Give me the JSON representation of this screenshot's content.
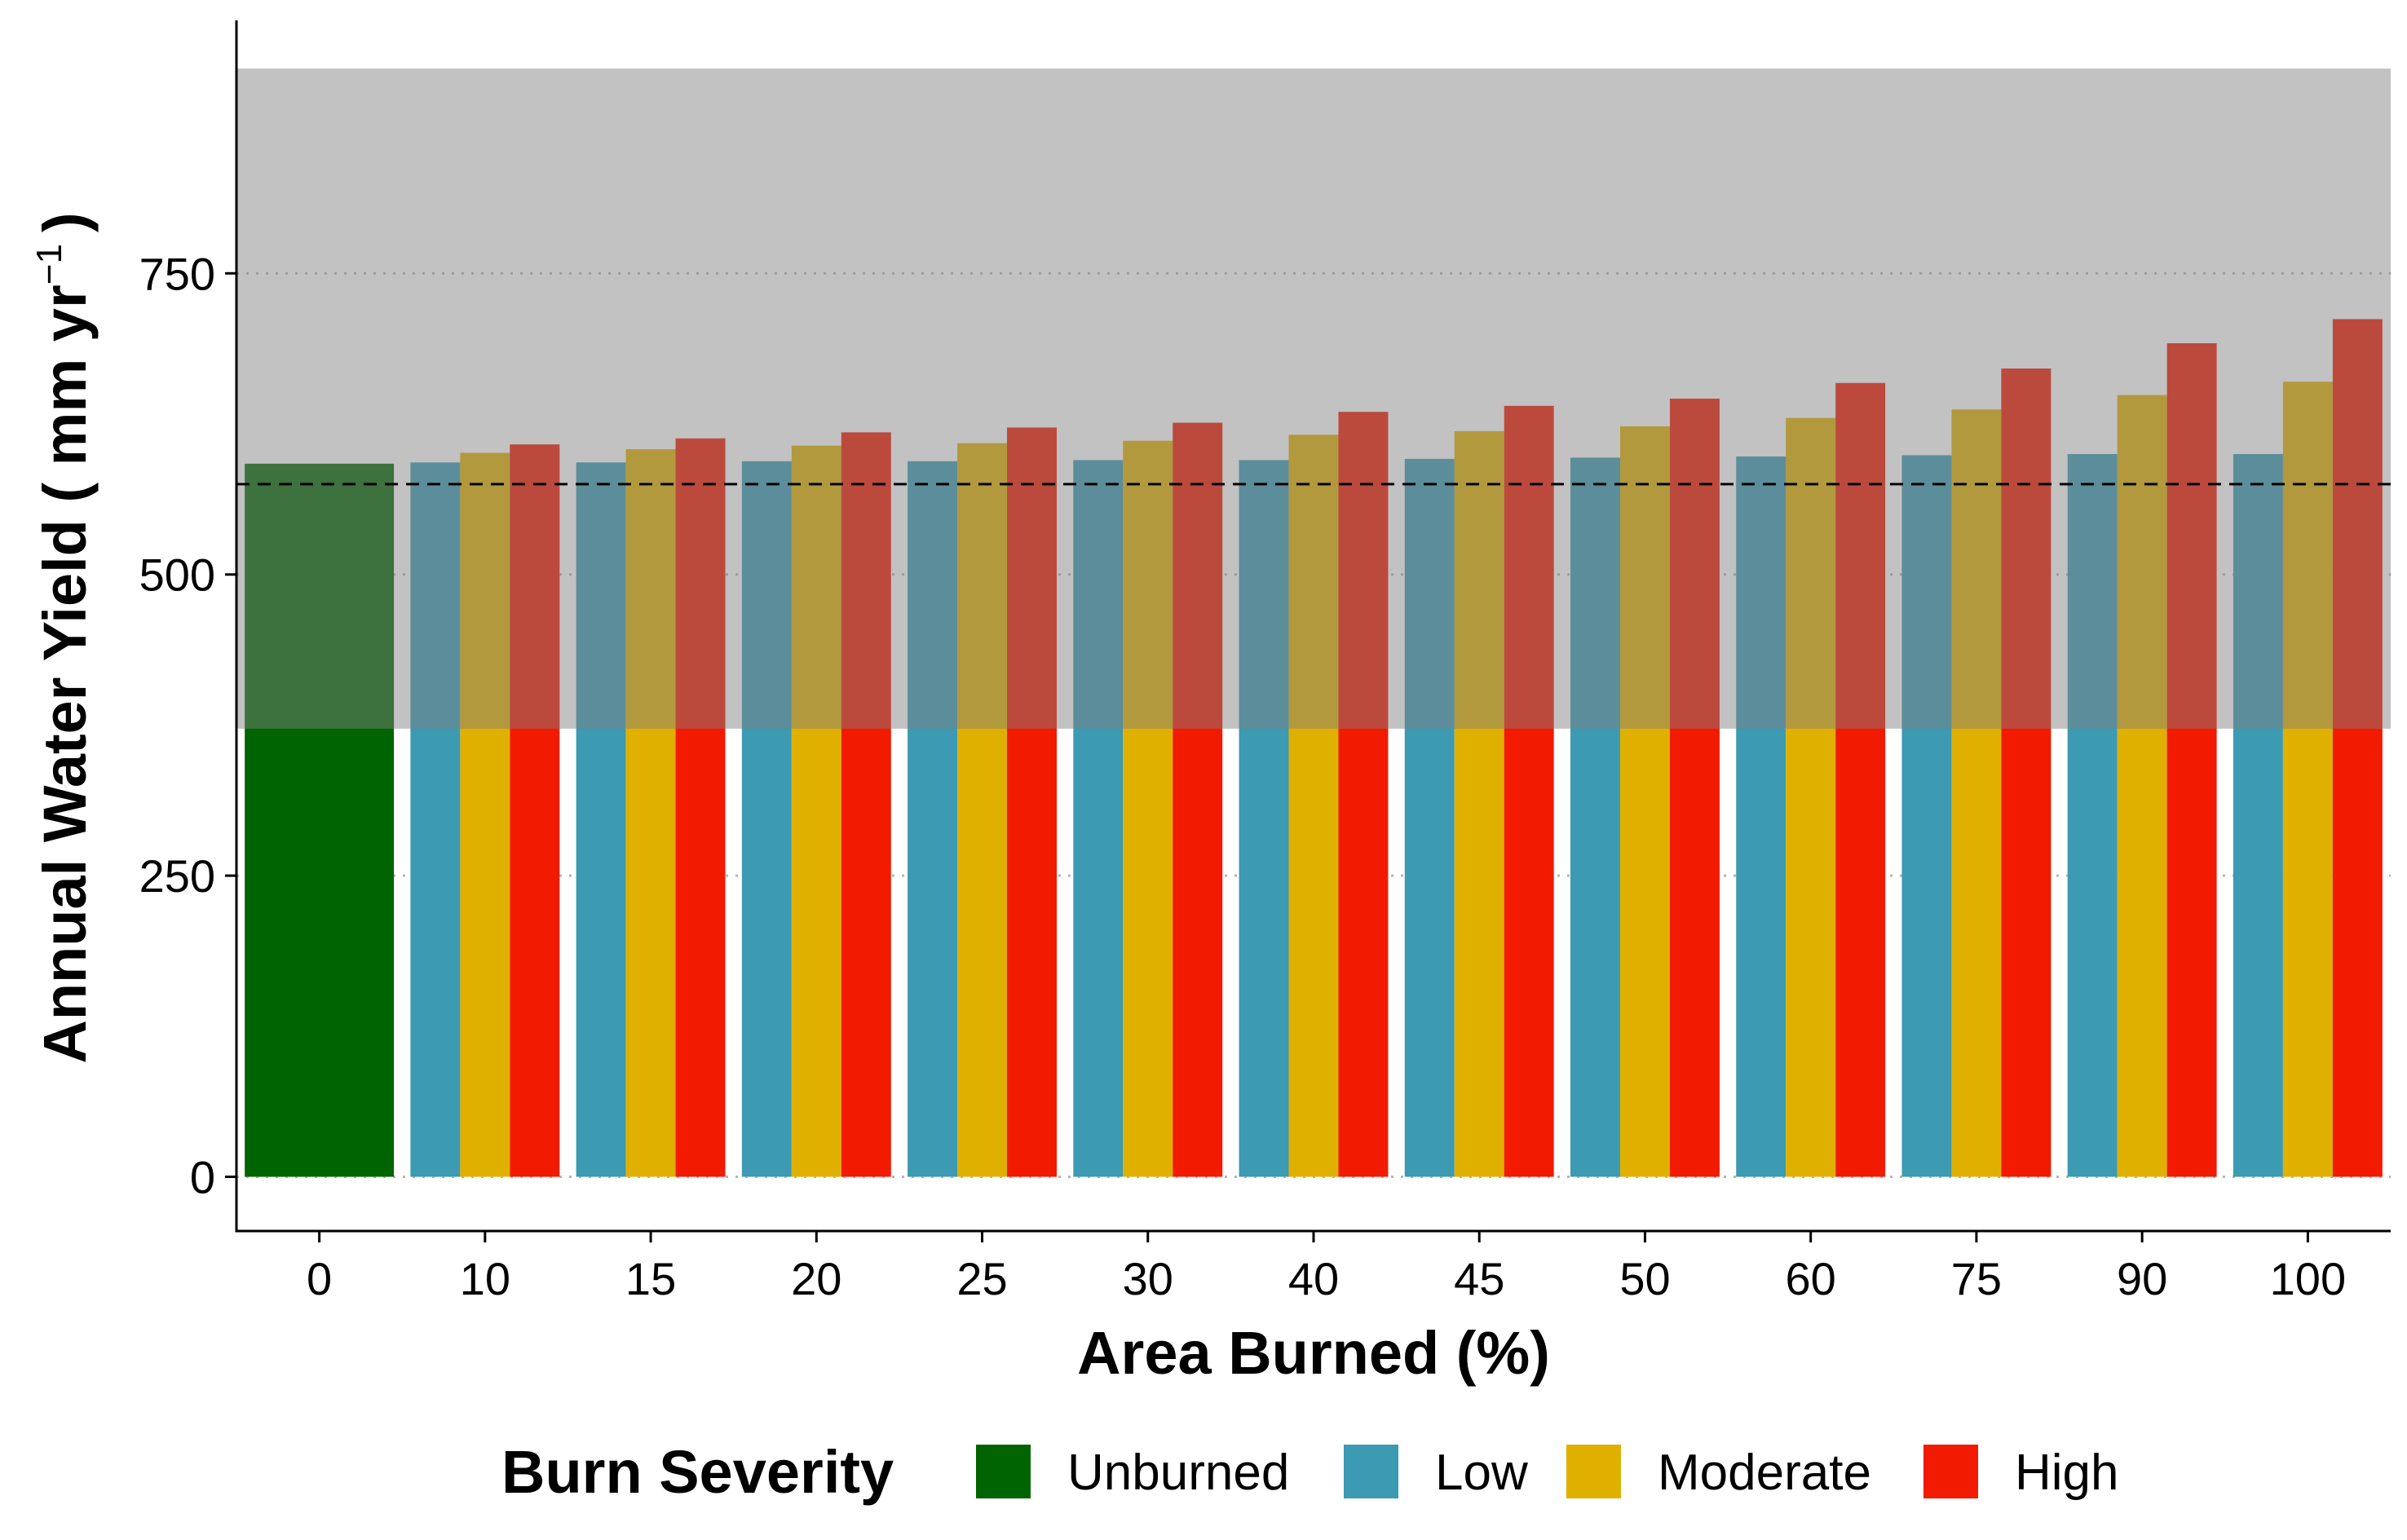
{
  "chart_data": {
    "type": "bar",
    "xlabel": "Area Burned (%)",
    "ylabel": "Annual Water Yield ( mm yr",
    "ylabel_sup": "−1",
    "ylabel_close": ")",
    "categories": [
      "0",
      "10",
      "15",
      "20",
      "25",
      "30",
      "40",
      "45",
      "50",
      "60",
      "75",
      "90",
      "100"
    ],
    "yticks": [
      0,
      250,
      500,
      750
    ],
    "ylim": [
      -45,
      960
    ],
    "grid": "horizontal dotted",
    "reference_line": 575,
    "shaded_band": [
      372,
      920
    ],
    "series": [
      {
        "name": "Unburned",
        "color": "#006400",
        "values": [
          592,
          null,
          null,
          null,
          null,
          null,
          null,
          null,
          null,
          null,
          null,
          null,
          null
        ]
      },
      {
        "name": "Low",
        "color": "#3C9AB2",
        "values": [
          null,
          593,
          593,
          594,
          594,
          595,
          595,
          596,
          597,
          598,
          599,
          600,
          600
        ]
      },
      {
        "name": "Moderate",
        "color": "#E0B000",
        "values": [
          null,
          601,
          604,
          607,
          609,
          611,
          616,
          619,
          623,
          630,
          637,
          649,
          660
        ]
      },
      {
        "name": "High",
        "color": "#F21A00",
        "values": [
          null,
          608,
          613,
          618,
          622,
          626,
          635,
          640,
          646,
          659,
          671,
          692,
          712
        ]
      }
    ],
    "legend": {
      "title": "Burn Severity",
      "position": "bottom"
    }
  }
}
